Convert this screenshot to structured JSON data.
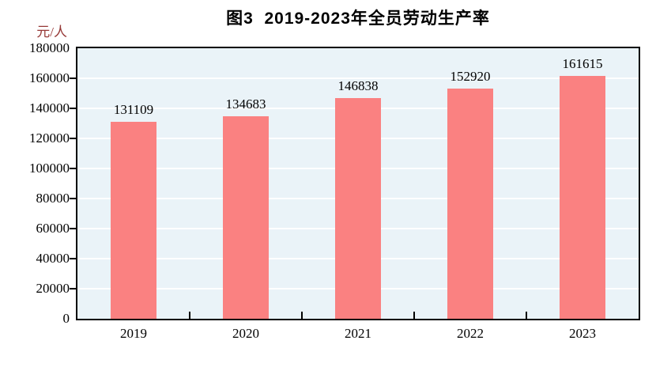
{
  "chart_data": {
    "type": "bar",
    "title": "图3  2019-2023年全员劳动生产率",
    "unit": "元/人",
    "categories": [
      "2019",
      "2020",
      "2021",
      "2022",
      "2023"
    ],
    "values": [
      131109,
      134683,
      146838,
      152920,
      161615
    ],
    "value_labels": [
      "131109",
      "134683",
      "146838",
      "152920",
      "161615"
    ],
    "ylim": [
      0,
      180000
    ],
    "y_tick_step": 20000,
    "y_tick_labels": [
      "0",
      "20000",
      "40000",
      "60000",
      "80000",
      "100000",
      "120000",
      "140000",
      "160000",
      "180000"
    ],
    "grid": "on",
    "legend": "none",
    "colors": {
      "bar": "#FA8181",
      "plot_background": "#EAF3F8",
      "gridline": "#FFFFFF",
      "axis_border": "#000000",
      "title_text": "#000000",
      "tick_text": "#000000",
      "unit_text": "#953735"
    }
  }
}
